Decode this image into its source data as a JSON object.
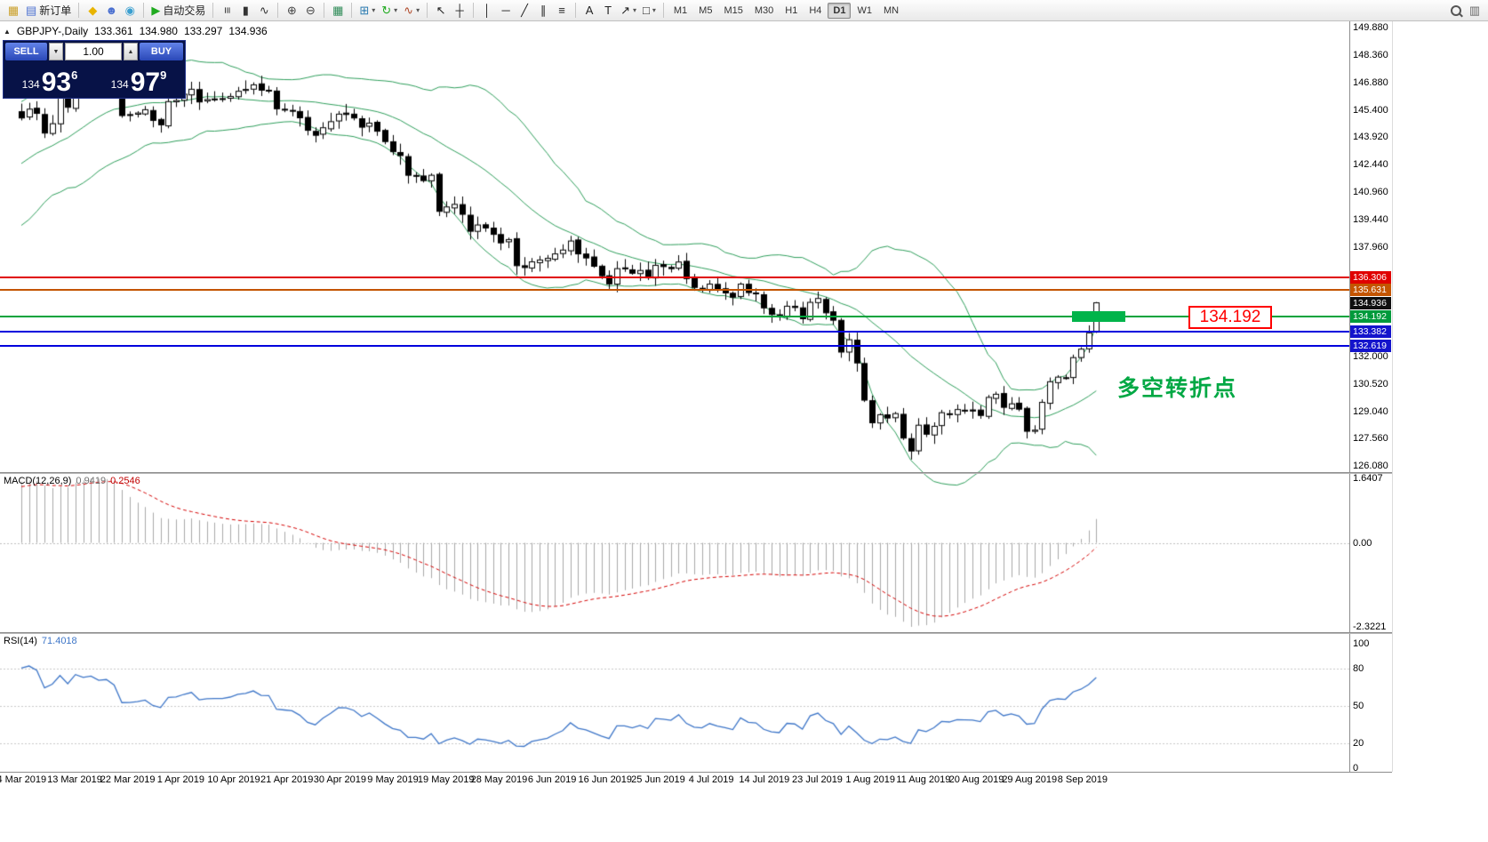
{
  "colors": {
    "bollinger": "#2E9E5B",
    "candle_up": "#FFFFFF",
    "candle_down": "#000000",
    "candle_outline": "#000000",
    "macd_histogram": "#A8A8A8",
    "macd_signal": "#D40000",
    "rsi_line": "#3E76C8",
    "level_dotted": "#C8C8C8",
    "breakout_line": "#00B44A",
    "annotation_red": "#FF0000",
    "annotation_green": "#00A844"
  },
  "toolbar": {
    "groups": [
      {
        "items": [
          {
            "name": "chart-window-icon",
            "glyph": "▦",
            "color": "#caa02a"
          },
          {
            "name": "new-order-button",
            "glyph": "▤",
            "color": "#4a6fd0",
            "label": "新订单"
          }
        ]
      },
      {
        "items": [
          {
            "name": "market-icon",
            "glyph": "◆",
            "color": "#e8b400"
          },
          {
            "name": "community-icon",
            "glyph": "☻",
            "color": "#4a6fd0"
          },
          {
            "name": "signals-icon",
            "glyph": "◉",
            "color": "#3a9fd0"
          }
        ]
      },
      {
        "items": [
          {
            "name": "autotrading-button",
            "glyph": "▶",
            "color": "#1faa1f",
            "label": "自动交易"
          }
        ]
      },
      {
        "items": [
          {
            "name": "bar-chart-icon",
            "glyph": "≡",
            "color": "#333333",
            "rot": true
          },
          {
            "name": "candlestick-icon",
            "glyph": "▮",
            "color": "#333333"
          },
          {
            "name": "line-chart-icon",
            "glyph": "∿",
            "color": "#333333"
          }
        ]
      },
      {
        "items": [
          {
            "name": "zoom-in-icon",
            "glyph": "⊕",
            "color": "#444444"
          },
          {
            "name": "zoom-out-icon",
            "glyph": "⊖",
            "color": "#444444"
          }
        ]
      },
      {
        "items": [
          {
            "name": "grid-icon",
            "glyph": "▦",
            "color": "#2e8b57"
          }
        ]
      },
      {
        "items": [
          {
            "name": "new-chart-icon",
            "glyph": "⊞",
            "color": "#2a7ab0",
            "dropdown": true
          },
          {
            "name": "profiles-icon",
            "glyph": "↻",
            "color": "#1faa1f",
            "dropdown": true
          },
          {
            "name": "indicators-icon",
            "glyph": "∿",
            "color": "#b04a2a",
            "dropdown": true
          }
        ]
      },
      {
        "items": [
          {
            "name": "cursor-icon",
            "glyph": "↖",
            "color": "#222222"
          },
          {
            "name": "crosshair-icon",
            "glyph": "┼",
            "color": "#222222"
          }
        ]
      },
      {
        "items": [
          {
            "name": "vertical-line-icon",
            "glyph": "│",
            "color": "#222222"
          },
          {
            "name": "horizontal-line-icon",
            "glyph": "─",
            "color": "#222222"
          },
          {
            "name": "trendline-icon",
            "glyph": "╱",
            "color": "#222222"
          },
          {
            "name": "channel-icon",
            "glyph": "∥",
            "color": "#222222"
          },
          {
            "name": "fibonacci-icon",
            "glyph": "≡",
            "color": "#222222"
          }
        ]
      },
      {
        "items": [
          {
            "name": "text-icon",
            "glyph": "A",
            "color": "#222222"
          },
          {
            "name": "text-label-icon",
            "glyph": "T",
            "color": "#222222"
          },
          {
            "name": "arrows-icon",
            "glyph": "↗",
            "color": "#222222",
            "dropdown": true
          },
          {
            "name": "shapes-icon",
            "glyph": "□",
            "color": "#222222",
            "dropdown": true
          }
        ]
      }
    ],
    "timeframes": {
      "items": [
        "M1",
        "M5",
        "M15",
        "M30",
        "H1",
        "H4",
        "D1",
        "W1",
        "MN"
      ],
      "active": "D1"
    },
    "right_items": [
      {
        "name": "search-icon",
        "mag": true
      },
      {
        "name": "quick-nav-icon",
        "glyph": "▥",
        "color": "#666666"
      }
    ]
  },
  "header": {
    "collapse_glyph": "▲",
    "symbol_period": "GBPJPY-,Daily",
    "open": "133.361",
    "high": "134.980",
    "low": "133.297",
    "close": "134.936"
  },
  "trade": {
    "sell_label": "SELL",
    "buy_label": "BUY",
    "volume": "1.00",
    "spin_down_glyph": "▼",
    "spin_up_glyph": "▲",
    "sell_big_figure": "134",
    "sell_pips": "93",
    "sell_point": "6",
    "buy_big_figure": "134",
    "buy_pips": "97",
    "buy_point": "9"
  },
  "price_axis": {
    "badges": [
      {
        "text": "136.306",
        "bg": "#E00000"
      },
      {
        "text": "135.631",
        "bg": "#C45500"
      },
      {
        "text": "134.936",
        "bg": "#101010"
      },
      {
        "text": "134.192",
        "bg": "#009A3C"
      },
      {
        "text": "133.382",
        "bg": "#1414CC"
      },
      {
        "text": "132.619",
        "bg": "#1414CC"
      }
    ]
  },
  "indicators": {
    "macd": {
      "label": "MACD(12,26,9)",
      "v1": "0.9419",
      "v2": "0.2546",
      "axis": [
        "1.6407",
        "0.00",
        "-2.3221"
      ]
    },
    "rsi": {
      "label": "RSI(14)",
      "v": "71.4018",
      "axis": [
        "100",
        "80",
        "50",
        "20",
        "0"
      ]
    }
  },
  "annotations": {
    "breakout_price_label": "134.192",
    "turning_point_label": "多空转折点"
  },
  "chart_data": {
    "type": "candlestick",
    "symbol": "GBPJPY-",
    "period": "Daily",
    "title": "GBPJPY-,Daily",
    "ylim": [
      126.08,
      149.88
    ],
    "ohlc_current": {
      "open": 133.361,
      "high": 134.98,
      "low": 133.297,
      "close": 134.936
    },
    "closes": [
      144.97,
      145.45,
      145.22,
      144.15,
      144.66,
      146.19,
      145.55,
      147.55,
      147.3,
      147.62,
      147.25,
      147.42,
      146.96,
      145.1,
      145.12,
      145.24,
      145.42,
      144.84,
      144.6,
      145.86,
      145.92,
      146.26,
      146.53,
      145.84,
      145.97,
      146.0,
      145.99,
      146.14,
      146.42,
      146.52,
      146.77,
      146.48,
      146.47,
      145.47,
      145.41,
      145.34,
      144.98,
      144.3,
      144.03,
      144.44,
      144.77,
      145.18,
      145.16,
      144.97,
      144.47,
      144.69,
      144.25,
      143.69,
      143.14,
      142.93,
      141.86,
      141.85,
      141.57,
      141.86,
      139.9,
      140.14,
      140.28,
      139.74,
      138.82,
      139.16,
      139.0,
      138.65,
      138.19,
      138.37,
      136.95,
      136.85,
      137.16,
      137.26,
      137.35,
      137.59,
      137.8,
      138.29,
      137.59,
      137.37,
      136.92,
      136.4,
      135.96,
      136.79,
      136.78,
      136.54,
      136.69,
      136.31,
      136.97,
      136.9,
      136.79,
      137.15,
      136.25,
      135.77,
      135.68,
      135.95,
      135.66,
      135.47,
      135.24,
      135.95,
      135.49,
      135.42,
      134.66,
      134.3,
      134.2,
      134.75,
      134.68,
      134.07,
      134.96,
      135.17,
      134.39,
      133.99,
      132.26,
      132.93,
      131.67,
      129.65,
      128.42,
      128.86,
      128.68,
      128.92,
      127.59,
      126.89,
      128.29,
      127.8,
      128.23,
      128.97,
      128.87,
      129.14,
      129.09,
      129.06,
      128.82,
      129.8,
      129.97,
      129.26,
      129.45,
      129.16,
      127.96,
      128.02,
      129.53,
      130.65,
      130.9,
      130.84,
      131.96,
      132.42,
      133.3,
      134.936
    ],
    "bollinger": {
      "period": 20,
      "deviation": 2
    },
    "hlines": [
      {
        "price": 136.306,
        "color": "#E00000"
      },
      {
        "price": 135.631,
        "color": "#C45500"
      },
      {
        "price": 134.192,
        "color": "#00A33C"
      },
      {
        "price": 133.382,
        "color": "#0000DD"
      },
      {
        "price": 132.619,
        "color": "#0000DD"
      }
    ],
    "macd": {
      "fast": 12,
      "slow": 26,
      "signal": 9,
      "main_value": 0.9419,
      "signal_value": 0.2546,
      "scale_max": 1.6407,
      "scale_min": -2.3221
    },
    "rsi": {
      "period": 14,
      "value": 71.4018,
      "levels": [
        100,
        80,
        50,
        20,
        0
      ]
    },
    "y_labels": [
      "149.880",
      "148.360",
      "146.880",
      "145.400",
      "143.920",
      "142.440",
      "140.960",
      "139.440",
      "137.960",
      "132.000",
      "130.520",
      "129.040",
      "127.560",
      "126.080"
    ],
    "x_labels": [
      "4 Mar 2019",
      "13 Mar 2019",
      "22 Mar 2019",
      "1 Apr 2019",
      "10 Apr 2019",
      "21 Apr 2019",
      "30 Apr 2019",
      "9 May 2019",
      "19 May 2019",
      "28 May 2019",
      "6 Jun 2019",
      "16 Jun 2019",
      "25 Jun 2019",
      "4 Jul 2019",
      "14 Jul 2019",
      "23 Jul 2019",
      "1 Aug 2019",
      "11 Aug 2019",
      "20 Aug 2019",
      "29 Aug 2019",
      "8 Sep 2019"
    ]
  }
}
